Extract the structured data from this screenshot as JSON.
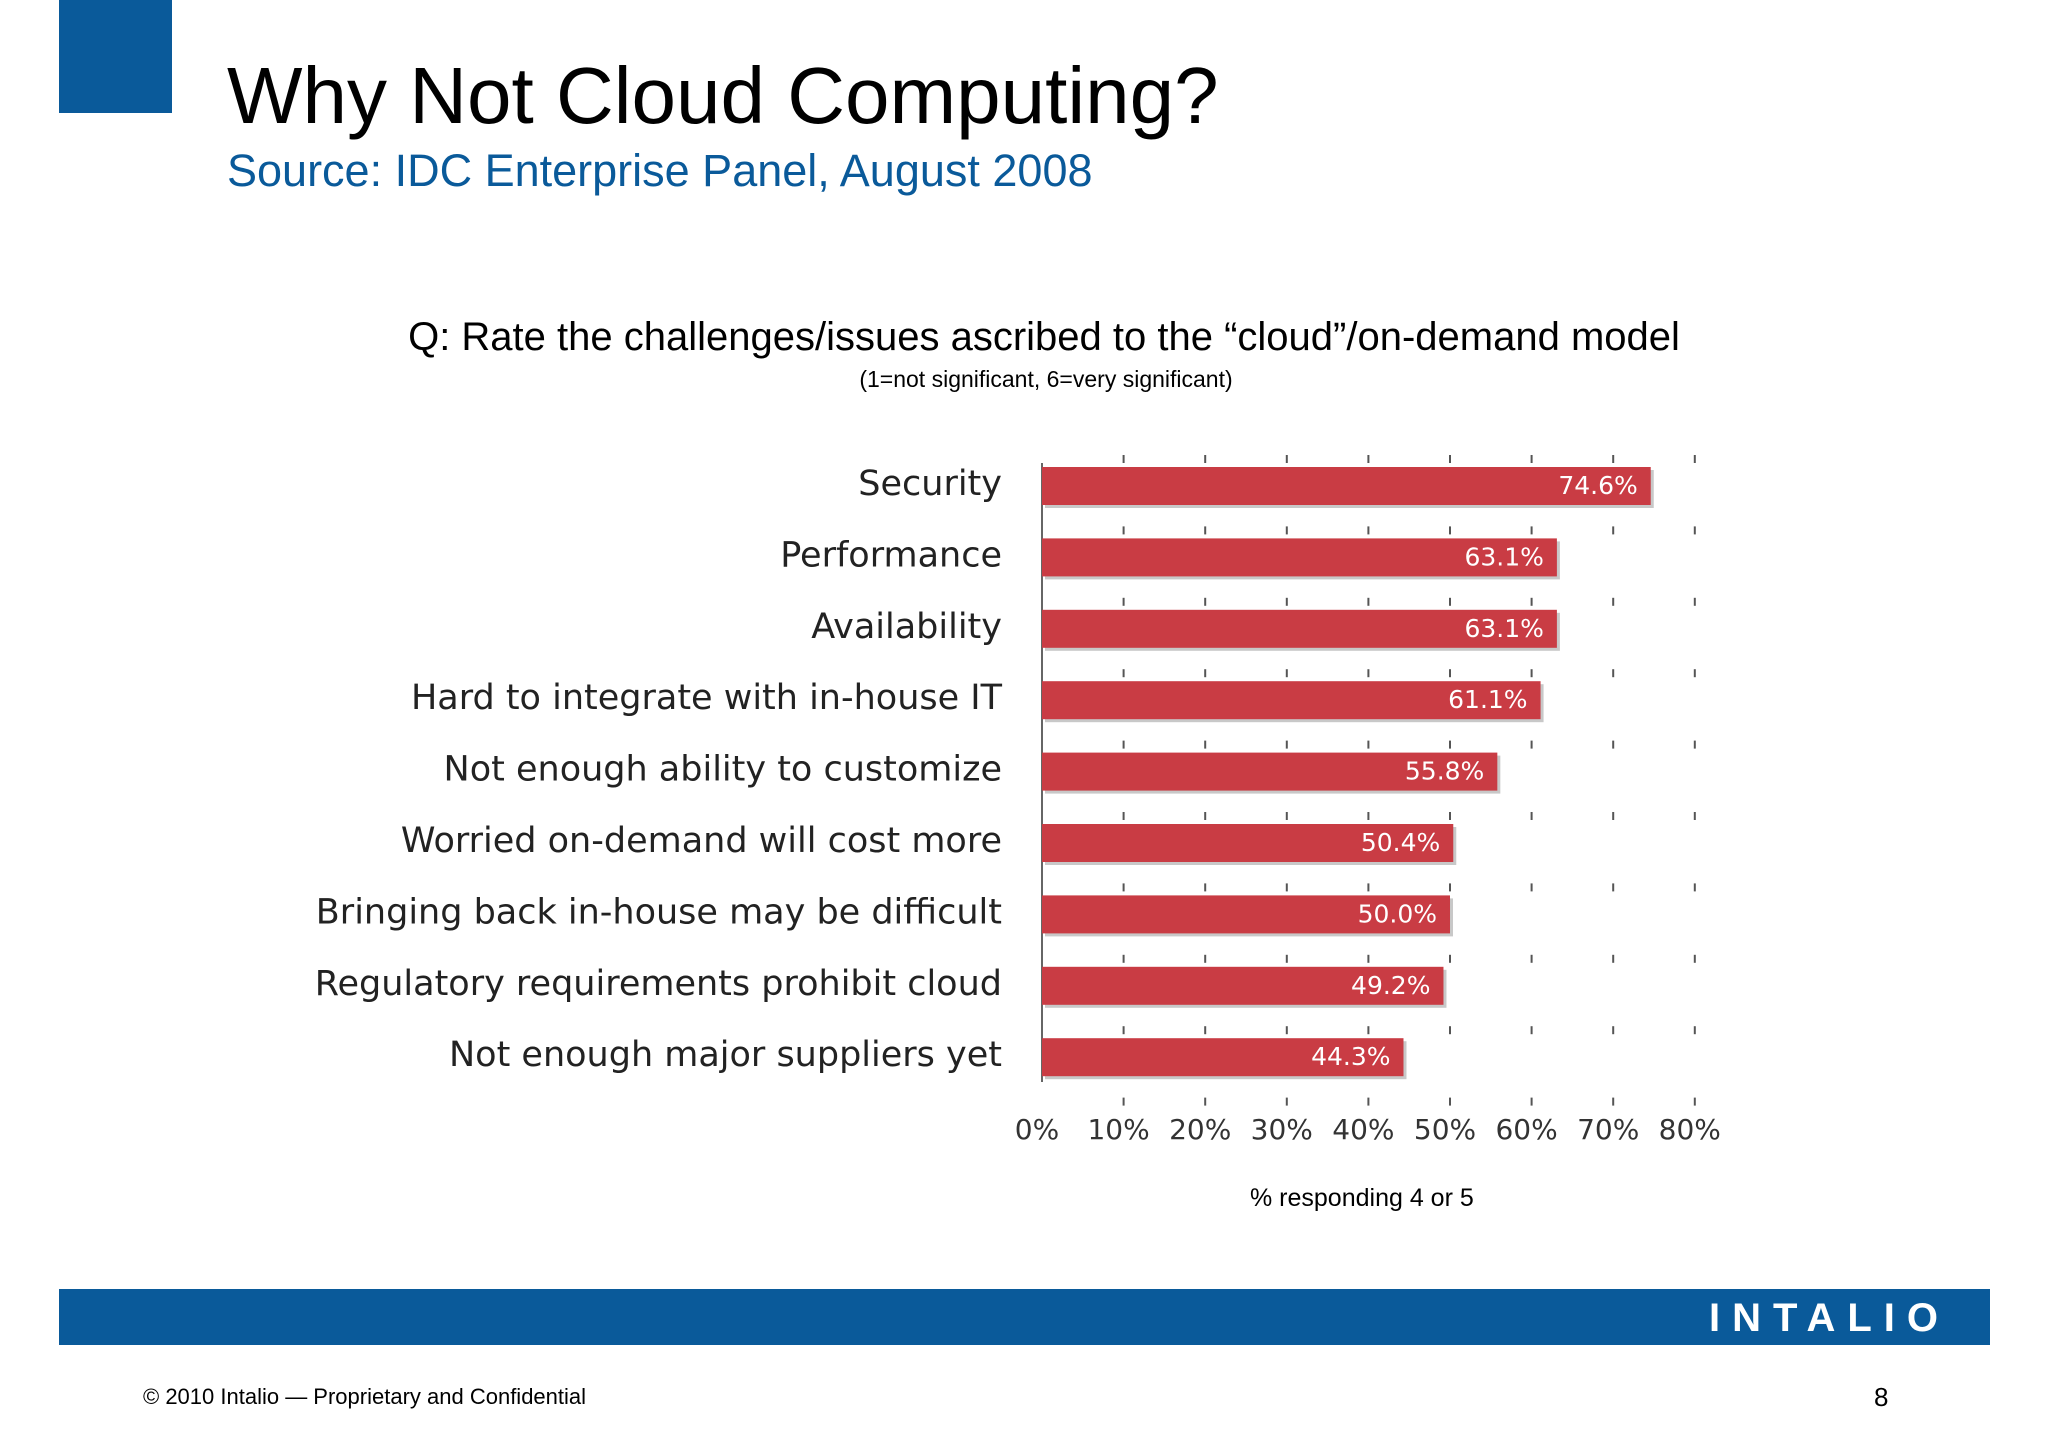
{
  "slide": {
    "title": "Why Not Cloud Computing?",
    "subtitle": "Source: IDC Enterprise Panel, August 2008",
    "question": "Q: Rate the challenges/issues ascribed to the “cloud”/on-demand model",
    "question_note": "(1=not significant, 6=very significant)"
  },
  "chart_data": {
    "type": "bar",
    "orientation": "horizontal",
    "categories": [
      "Security",
      "Performance",
      "Availability",
      "Hard to integrate with in-house IT",
      "Not enough ability to customize",
      "Worried on-demand will cost more",
      "Bringing back in-house may be difficult",
      "Regulatory requirements prohibit cloud",
      "Not enough major suppliers yet"
    ],
    "values": [
      74.6,
      63.1,
      63.1,
      61.1,
      55.8,
      50.4,
      50.0,
      49.2,
      44.3
    ],
    "value_labels": [
      "74.6%",
      "63.1%",
      "63.1%",
      "61.1%",
      "55.8%",
      "50.4%",
      "50.0%",
      "49.2%",
      "44.3%"
    ],
    "xlim": [
      0,
      80
    ],
    "x_ticks": [
      "0%",
      "10%",
      "20%",
      "30%",
      "40%",
      "50%",
      "60%",
      "70%",
      "80%"
    ],
    "xlabel": "% responding 4 or 5",
    "grid": false,
    "bar_color": "#c93c44"
  },
  "footer": {
    "brand": "INTALIO",
    "copyright": "© 2010 Intalio — Proprietary and Confidential",
    "page_number": "8",
    "bar_color": "#0a5a9a"
  }
}
